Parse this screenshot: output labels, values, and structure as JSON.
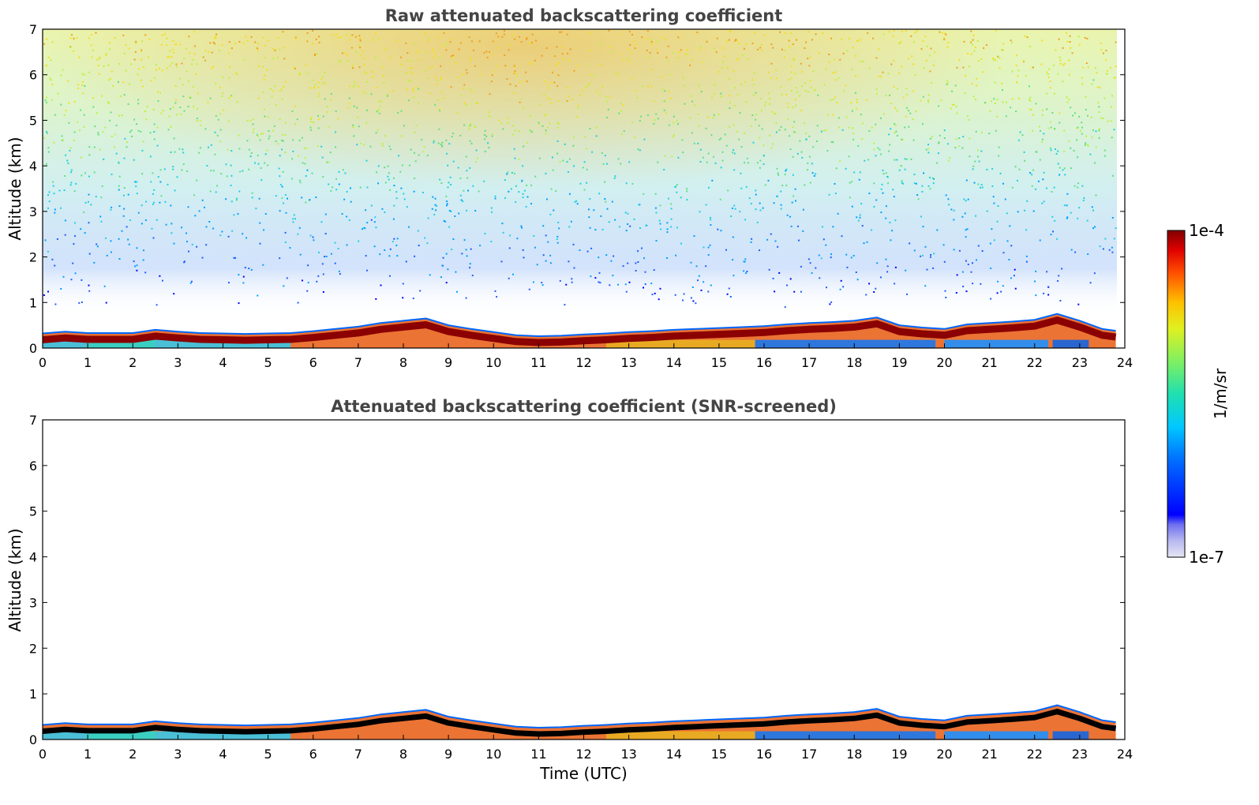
{
  "chart_data": [
    {
      "type": "heatmap",
      "title": "Raw attenuated backscattering coefficient",
      "xlabel": "",
      "ylabel": "Altitude (km)",
      "xlim": [
        0,
        24
      ],
      "ylim": [
        0,
        7
      ],
      "x_ticks": [
        "0",
        "1",
        "2",
        "3",
        "4",
        "5",
        "6",
        "7",
        "8",
        "9",
        "10",
        "11",
        "12",
        "13",
        "14",
        "15",
        "16",
        "17",
        "18",
        "19",
        "20",
        "21",
        "22",
        "23",
        "24"
      ],
      "y_ticks": [
        "0",
        "1",
        "2",
        "3",
        "4",
        "5",
        "6",
        "7"
      ],
      "grid": false,
      "layer_top_km": {
        "time_utc": [
          0,
          0.5,
          1,
          1.5,
          2,
          2.5,
          3,
          3.5,
          4,
          4.5,
          5,
          5.5,
          6,
          6.5,
          7,
          7.5,
          8,
          8.5,
          9,
          9.5,
          10,
          10.5,
          11,
          11.5,
          12,
          12.5,
          13,
          13.5,
          14,
          14.5,
          15,
          15.5,
          16,
          16.5,
          17,
          17.5,
          18,
          18.5,
          19,
          19.5,
          20,
          20.5,
          21,
          21.5,
          22,
          22.5,
          23,
          23.5,
          23.8
        ],
        "altitude": [
          0.32,
          0.36,
          0.33,
          0.33,
          0.33,
          0.4,
          0.36,
          0.33,
          0.32,
          0.31,
          0.32,
          0.33,
          0.37,
          0.42,
          0.47,
          0.55,
          0.6,
          0.65,
          0.5,
          0.42,
          0.35,
          0.28,
          0.26,
          0.27,
          0.3,
          0.32,
          0.35,
          0.37,
          0.4,
          0.42,
          0.44,
          0.46,
          0.48,
          0.52,
          0.55,
          0.57,
          0.6,
          0.67,
          0.5,
          0.45,
          0.42,
          0.52,
          0.55,
          0.58,
          0.62,
          0.75,
          0.6,
          0.42,
          0.38
        ]
      },
      "scatter_band_km": [
        0.9,
        7
      ]
    },
    {
      "type": "heatmap",
      "title": "Attenuated backscattering coefficient (SNR-screened)",
      "xlabel": "Time (UTC)",
      "ylabel": "Altitude (km)",
      "xlim": [
        0,
        24
      ],
      "ylim": [
        0,
        7
      ],
      "x_ticks": [
        "0",
        "1",
        "2",
        "3",
        "4",
        "5",
        "6",
        "7",
        "8",
        "9",
        "10",
        "11",
        "12",
        "13",
        "14",
        "15",
        "16",
        "17",
        "18",
        "19",
        "20",
        "21",
        "22",
        "23",
        "24"
      ],
      "y_ticks": [
        "0",
        "1",
        "2",
        "3",
        "4",
        "5",
        "6",
        "7"
      ],
      "grid": false,
      "layer_top_km": {
        "time_utc": [
          0,
          0.5,
          1,
          1.5,
          2,
          2.5,
          3,
          3.5,
          4,
          4.5,
          5,
          5.5,
          6,
          6.5,
          7,
          7.5,
          8,
          8.5,
          9,
          9.5,
          10,
          10.5,
          11,
          11.5,
          12,
          12.5,
          13,
          13.5,
          14,
          14.5,
          15,
          15.5,
          16,
          16.5,
          17,
          17.5,
          18,
          18.5,
          19,
          19.5,
          20,
          20.5,
          21,
          21.5,
          22,
          22.5,
          23,
          23.5,
          23.8
        ],
        "altitude": [
          0.32,
          0.36,
          0.33,
          0.33,
          0.33,
          0.4,
          0.36,
          0.33,
          0.32,
          0.31,
          0.32,
          0.33,
          0.37,
          0.42,
          0.47,
          0.55,
          0.6,
          0.65,
          0.5,
          0.42,
          0.35,
          0.28,
          0.26,
          0.27,
          0.3,
          0.32,
          0.35,
          0.37,
          0.4,
          0.42,
          0.44,
          0.46,
          0.48,
          0.52,
          0.55,
          0.57,
          0.6,
          0.67,
          0.5,
          0.45,
          0.42,
          0.52,
          0.55,
          0.58,
          0.62,
          0.75,
          0.6,
          0.42,
          0.38
        ]
      }
    }
  ],
  "colorbar": {
    "label": "1/m/sr",
    "max_label": "1e-4",
    "min_label": "1e-7",
    "colormap": "jet",
    "scale": "log",
    "range": [
      1e-07,
      0.0001
    ]
  },
  "colors": {
    "title": "#444444",
    "axis": "#000000",
    "layer_core": "#8b0000",
    "layer_top_edge": "#0066ff",
    "snr_core": "#000000"
  }
}
